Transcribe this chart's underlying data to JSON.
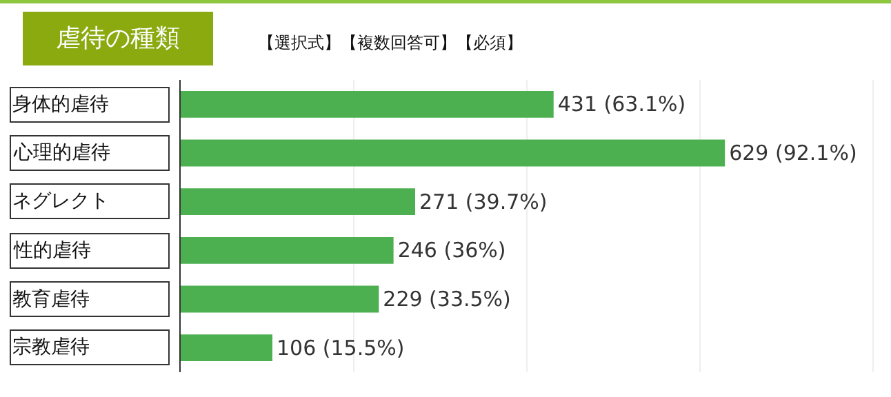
{
  "chart_data": {
    "type": "bar",
    "orientation": "horizontal",
    "title": "虐待の種類",
    "subtitle": "【選択式】【複数回答可】【必須】",
    "categories": [
      "身体的虐待",
      "心理的虐待",
      "ネグレクト",
      "性的虐待",
      "教育虐待",
      "宗教虐待"
    ],
    "values": [
      431,
      629,
      271,
      246,
      229,
      106
    ],
    "color": "#4caf50",
    "value_labels": [
      "431 (63.1%)",
      "629 (92.1%)",
      "271 (39.7%)",
      "246 (36%)",
      "229 (33.5%)",
      "106 (15.5%)"
    ],
    "grid": "x",
    "tick_labels": "y"
  }
}
